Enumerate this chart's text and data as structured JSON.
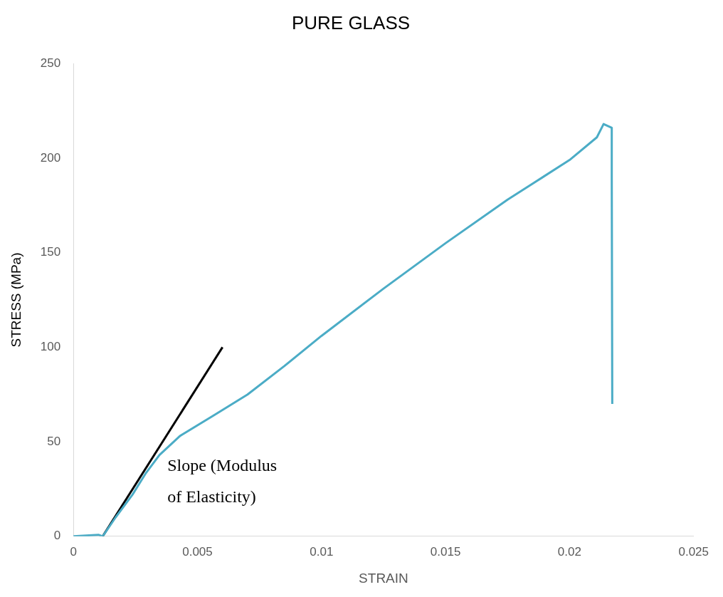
{
  "chart_data": {
    "type": "line",
    "title": "PURE GLASS",
    "xlabel": "STRAIN",
    "ylabel": "STRESS (MPa)",
    "xlim": [
      0,
      0.025
    ],
    "xticks": [
      0,
      0.005,
      0.01,
      0.015,
      0.02,
      0.025
    ],
    "ylim": [
      0,
      250
    ],
    "yticks": [
      0,
      50,
      100,
      150,
      200,
      250
    ],
    "grid": false,
    "legend": false,
    "marker": "none",
    "line_style": "solid",
    "series": [
      {
        "color": "#4bacc6",
        "x": [
          0,
          0.00101,
          0.00118,
          0.0017,
          0.00238,
          0.0029,
          0.00347,
          0.00429,
          0.00566,
          0.00702,
          0.0085,
          0.01,
          0.0125,
          0.015,
          0.0175,
          0.02,
          0.0211,
          0.02137,
          0.0217,
          0.0217,
          0.02172
        ],
        "values": [
          0,
          0.8,
          0,
          10,
          22,
          33,
          43,
          53,
          64,
          75,
          90,
          106,
          131,
          155,
          178,
          199,
          211,
          218,
          216,
          190,
          70
        ]
      },
      {
        "type": "line",
        "color": "#000000",
        "x": [
          0.00118,
          0.00601
        ],
        "values": [
          0,
          100
        ]
      }
    ],
    "annotations": [
      "Slope (Modulus of Elasticity)"
    ]
  }
}
